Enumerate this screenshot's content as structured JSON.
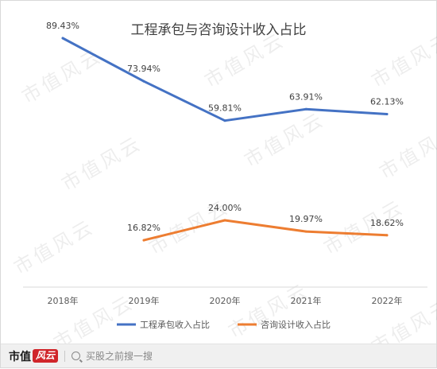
{
  "chart_data": {
    "type": "line",
    "title": "工程承包与咨询设计收入占比",
    "categories": [
      "2018年",
      "2019年",
      "2020年",
      "2021年",
      "2022年"
    ],
    "ylim": [
      0,
      100
    ],
    "grid": false,
    "legend_position": "bottom",
    "series": [
      {
        "name": "工程承包收入占比",
        "color": "#4472c4",
        "values": [
          89.43,
          73.94,
          59.81,
          63.91,
          62.13
        ],
        "labels": [
          "89.43%",
          "73.94%",
          "59.81%",
          "63.91%",
          "62.13%"
        ]
      },
      {
        "name": "咨询设计收入占比",
        "color": "#ed7d31",
        "values": [
          null,
          16.82,
          24.0,
          19.97,
          18.62
        ],
        "labels": [
          null,
          "16.82%",
          "24.00%",
          "19.97%",
          "18.62%"
        ]
      }
    ]
  },
  "watermark": "市值风云",
  "footer": {
    "brand_text": "市值",
    "brand_badge": "风云",
    "search_placeholder": "买股之前搜一搜"
  }
}
